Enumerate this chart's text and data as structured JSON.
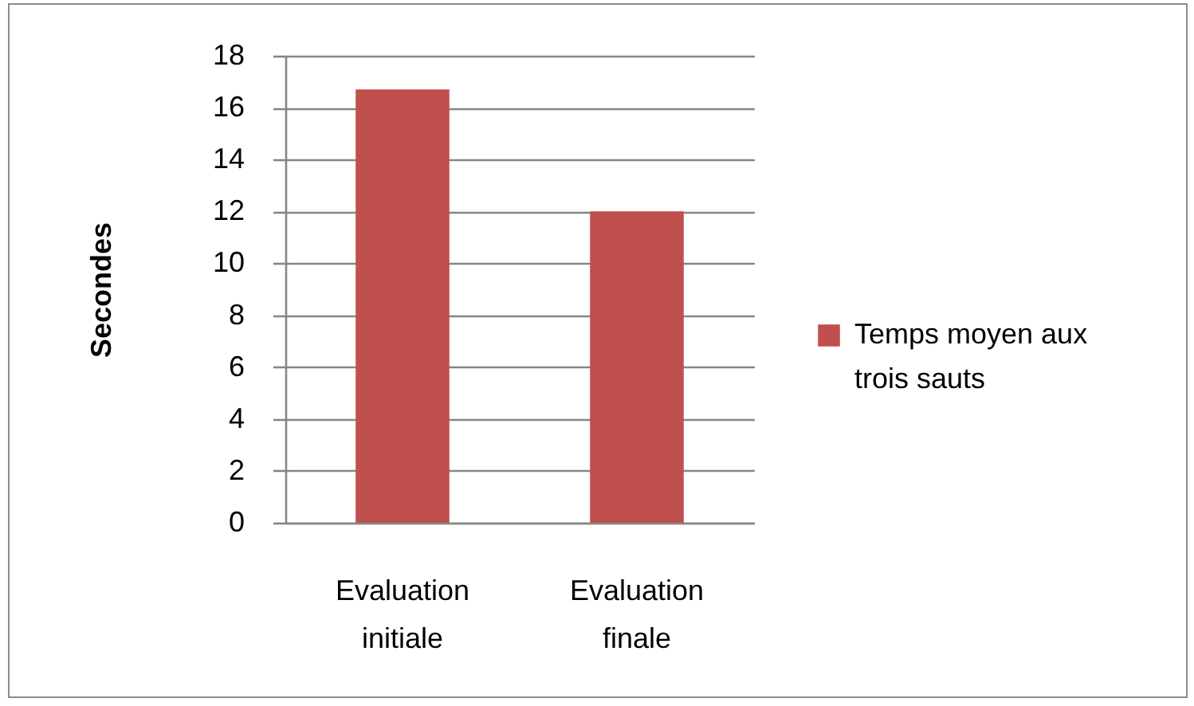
{
  "chart_data": {
    "type": "bar",
    "ylabel": "Secondes",
    "categories": [
      "Evaluation initiale",
      "Evaluation finale"
    ],
    "series": [
      {
        "name": "Temps moyen aux trois sauts",
        "color": "#c0504d",
        "values": [
          16.7,
          12
        ]
      }
    ],
    "ylim": [
      0,
      18
    ],
    "yticks": [
      0,
      2,
      4,
      6,
      8,
      10,
      12,
      14,
      16,
      18
    ],
    "grid": "y",
    "legend": "right"
  }
}
